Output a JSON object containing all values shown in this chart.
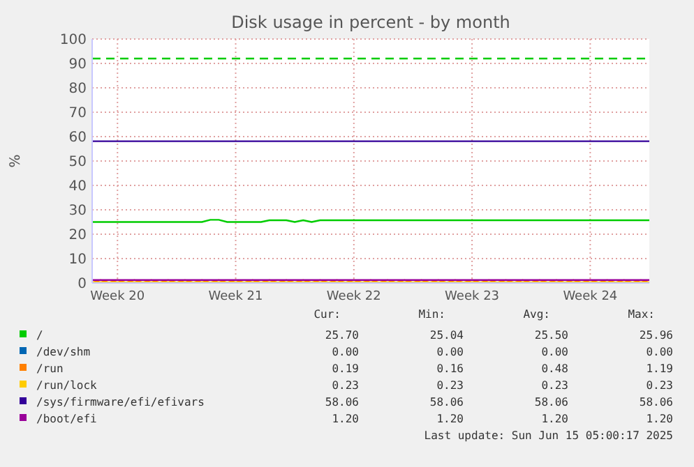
{
  "chart_data": {
    "type": "line",
    "title": "Disk usage in percent - by month",
    "ylabel": "%",
    "categories": [
      null,
      null,
      null,
      "Week 20",
      null,
      null,
      null,
      null,
      null,
      null,
      null,
      null,
      null,
      null,
      null,
      null,
      null,
      "Week 21",
      null,
      null,
      null,
      null,
      null,
      null,
      null,
      null,
      null,
      null,
      null,
      null,
      null,
      "Week 22",
      null,
      null,
      null,
      null,
      null,
      null,
      null,
      null,
      null,
      null,
      null,
      null,
      null,
      "Week 23",
      null,
      null,
      null,
      null,
      null,
      null,
      null,
      null,
      null,
      null,
      null,
      null,
      null,
      "Week 24",
      null,
      null,
      null,
      null,
      null,
      null,
      null
    ],
    "ylim": [
      0,
      100
    ],
    "yticks": [
      0,
      10,
      20,
      30,
      40,
      50,
      60,
      70,
      80,
      90,
      100
    ],
    "grid": true,
    "legend": "bottom",
    "ref_lines": [
      {
        "axis": "y",
        "value": 92,
        "color": "#00cc00",
        "line_style": "dashed"
      }
    ],
    "series": [
      {
        "name": "/",
        "color": "#00cc00",
        "values": [
          25.0,
          25.0,
          25.0,
          25.0,
          25.0,
          25.0,
          25.0,
          25.0,
          25.0,
          25.0,
          25.0,
          25.0,
          25.0,
          25.0,
          25.9,
          25.9,
          25.0,
          25.0,
          25.0,
          25.0,
          25.0,
          25.7,
          25.7,
          25.7,
          25.0,
          25.7,
          25.0,
          25.7,
          25.7,
          25.7,
          25.7,
          25.7,
          25.7,
          25.7,
          25.7,
          25.7,
          25.7,
          25.7,
          25.7,
          25.7,
          25.7,
          25.7,
          25.7,
          25.7,
          25.7,
          25.7,
          25.7,
          25.7,
          25.7,
          25.7,
          25.7,
          25.7,
          25.7,
          25.7,
          25.7,
          25.7,
          25.7,
          25.7,
          25.7,
          25.7,
          25.7,
          25.7,
          25.7,
          25.7,
          25.7,
          25.7,
          25.7
        ]
      },
      {
        "name": "/dev/shm",
        "color": "#0066b3",
        "values": [
          null,
          null,
          null,
          null,
          null,
          null,
          null,
          null,
          null,
          null,
          null,
          null,
          null,
          null,
          null,
          null,
          null,
          null,
          null,
          null,
          null,
          null,
          null,
          null,
          null,
          null,
          null,
          null,
          null,
          null,
          null,
          null,
          null,
          null,
          null,
          null,
          null,
          null,
          null,
          null,
          null,
          null,
          null,
          null,
          null,
          null,
          null,
          null,
          null,
          null,
          null,
          null,
          null,
          null,
          null,
          null,
          null,
          null,
          null,
          null,
          null,
          null,
          null,
          null,
          null,
          null,
          null
        ]
      },
      {
        "name": "/run",
        "color": "#ff8000",
        "values": [
          0.2,
          1.2,
          0.2,
          1.2,
          0.2,
          1.2,
          0.2,
          1.2,
          0.2,
          1.2,
          0.2,
          1.2,
          0.2,
          1.2,
          0.2,
          1.2,
          0.2,
          1.2,
          0.2,
          1.2,
          0.2,
          1.2,
          0.2,
          1.2,
          0.2,
          1.2,
          0.2,
          1.2,
          0.2,
          1.2,
          0.2,
          1.2,
          0.2,
          1.2,
          0.2,
          1.2,
          0.2,
          1.2,
          0.2,
          1.2,
          0.2,
          1.2,
          0.2,
          1.2,
          0.2,
          1.2,
          0.2,
          1.2,
          0.2,
          1.2,
          0.2,
          1.2,
          0.2,
          1.2,
          0.2,
          1.2,
          0.2,
          1.2,
          0.2,
          1.2,
          0.2,
          1.2,
          0.2,
          1.2,
          0.2,
          1.2,
          0.2
        ]
      },
      {
        "name": "/run/lock",
        "color": "#ffcc00",
        "values": [
          0.2,
          0.2,
          0.2,
          0.2,
          0.2,
          0.2,
          0.2,
          0.2,
          0.2,
          0.2,
          0.2,
          0.2,
          0.2,
          0.2,
          0.2,
          0.2,
          0.2,
          0.2,
          0.2,
          0.2,
          0.2,
          0.2,
          0.2,
          0.2,
          0.2,
          0.2,
          0.2,
          0.2,
          0.2,
          0.2,
          0.2,
          0.2,
          0.2,
          0.2,
          0.2,
          0.2,
          0.2,
          0.2,
          0.2,
          0.2,
          0.2,
          0.2,
          0.2,
          0.2,
          0.2,
          0.2,
          0.2,
          0.2,
          0.2,
          0.2,
          0.2,
          0.2,
          0.2,
          0.2,
          0.2,
          0.2,
          0.2,
          0.2,
          0.2,
          0.2,
          0.2,
          0.2,
          0.2,
          0.2,
          0.2,
          0.2,
          0.2
        ]
      },
      {
        "name": "/sys/firmware/efi/efivars",
        "color": "#330099",
        "values": [
          58.1,
          58.1,
          58.1,
          58.1,
          58.1,
          58.1,
          58.1,
          58.1,
          58.1,
          58.1,
          58.1,
          58.1,
          58.1,
          58.1,
          58.1,
          58.1,
          58.1,
          58.1,
          58.1,
          58.1,
          58.1,
          58.1,
          58.1,
          58.1,
          58.1,
          58.1,
          58.1,
          58.1,
          58.1,
          58.1,
          58.1,
          58.1,
          58.1,
          58.1,
          58.1,
          58.1,
          58.1,
          58.1,
          58.1,
          58.1,
          58.1,
          58.1,
          58.1,
          58.1,
          58.1,
          58.1,
          58.1,
          58.1,
          58.1,
          58.1,
          58.1,
          58.1,
          58.1,
          58.1,
          58.1,
          58.1,
          58.1,
          58.1,
          58.1,
          58.1,
          58.1,
          58.1,
          58.1,
          58.1,
          58.1,
          58.1,
          58.1
        ]
      },
      {
        "name": "/boot/efi",
        "color": "#990099",
        "values": [
          1.2,
          1.2,
          1.2,
          1.2,
          1.2,
          1.2,
          1.2,
          1.2,
          1.2,
          1.2,
          1.2,
          1.2,
          1.2,
          1.2,
          1.2,
          1.2,
          1.2,
          1.2,
          1.2,
          1.2,
          1.2,
          1.2,
          1.2,
          1.2,
          1.2,
          1.2,
          1.2,
          1.2,
          1.2,
          1.2,
          1.2,
          1.2,
          1.2,
          1.2,
          1.2,
          1.2,
          1.2,
          1.2,
          1.2,
          1.2,
          1.2,
          1.2,
          1.2,
          1.2,
          1.2,
          1.2,
          1.2,
          1.2,
          1.2,
          1.2,
          1.2,
          1.2,
          1.2,
          1.2,
          1.2,
          1.2,
          1.2,
          1.2,
          1.2,
          1.2,
          1.2,
          1.2,
          1.2,
          1.2,
          1.2,
          1.2,
          1.2
        ]
      }
    ],
    "annotations": [
      "Cur:",
      "Min:",
      "Avg:",
      "Max:",
      "25.70",
      "25.04",
      "25.50",
      "25.96",
      "0.00",
      "0.00",
      "0.00",
      "0.00",
      "0.19",
      "0.16",
      "0.48",
      "1.19",
      "0.23",
      "0.23",
      "0.23",
      "0.23",
      "58.06",
      "58.06",
      "58.06",
      "58.06",
      "1.20",
      "1.20",
      "1.20",
      "1.20",
      "Last update: Sun Jun 15 05:00:17 2025"
    ]
  }
}
